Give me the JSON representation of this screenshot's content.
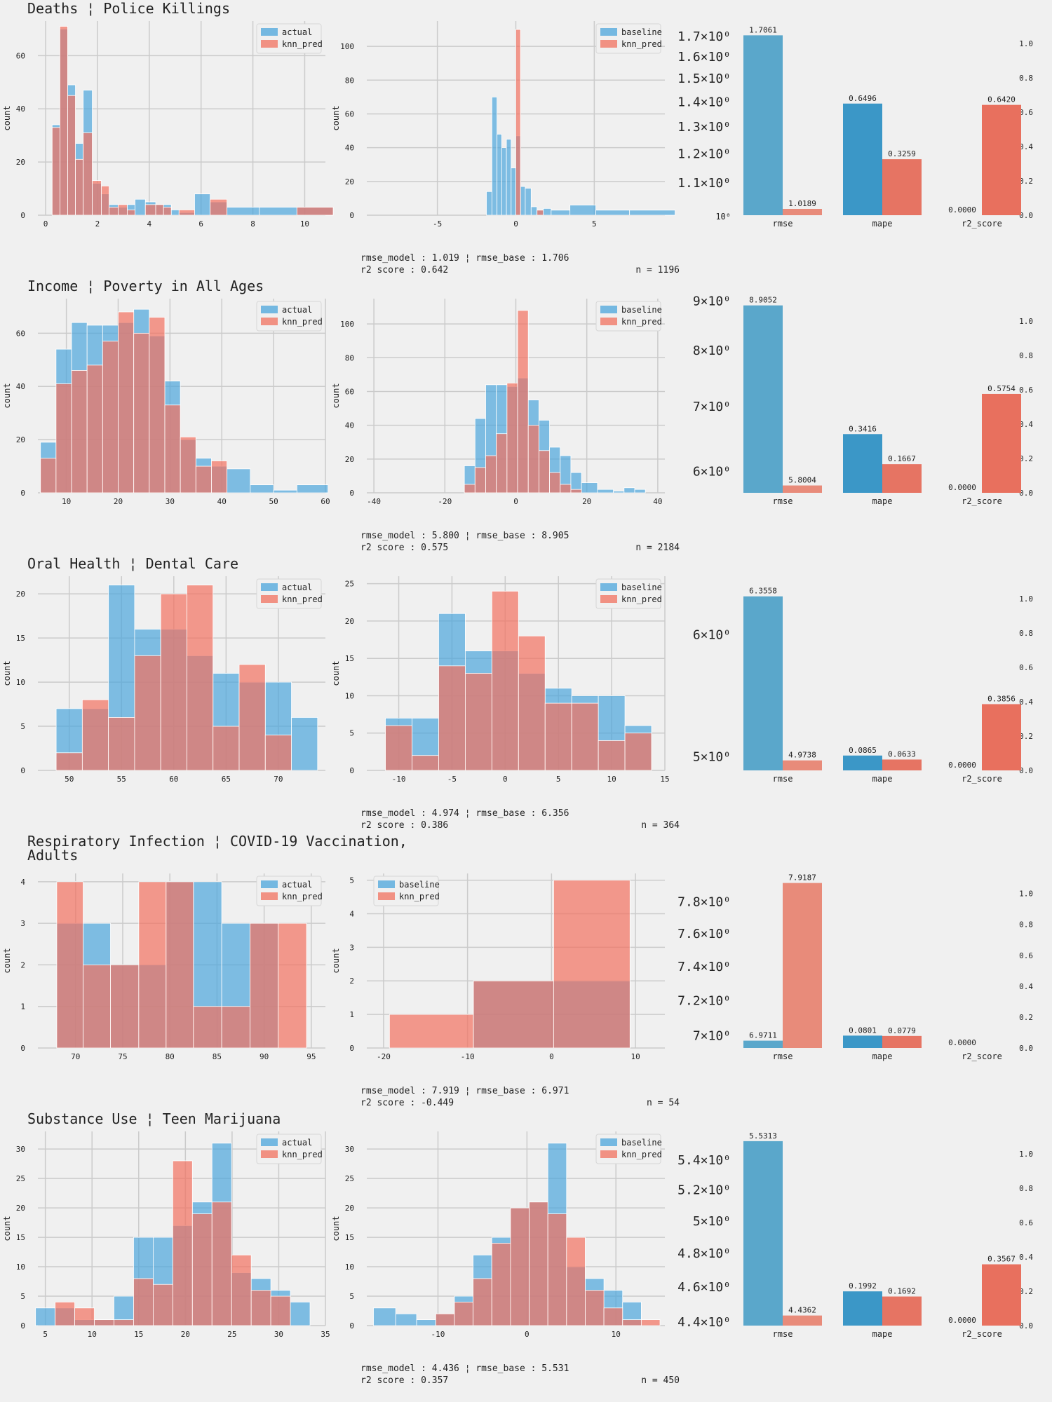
{
  "colors": {
    "blue": "#4ba5dc",
    "red": "#f2715f",
    "bg": "#f0f0f0",
    "grid": "#cbcbcb"
  },
  "labels": {
    "count": "count",
    "actual": "actual",
    "knn_pred": "knn_pred",
    "baseline": "baseline",
    "metrics": [
      "rmse",
      "mape",
      "r2_score"
    ]
  },
  "chart_data": [
    {
      "title": [
        "Deaths ¦ Police Killings"
      ],
      "hist_left": {
        "type": "bar",
        "xlim": [
          -0.3,
          10.8
        ],
        "ylim": [
          0,
          73
        ],
        "xticks": [
          0,
          2,
          4,
          6,
          8,
          10
        ],
        "yticks": [
          0,
          20,
          40,
          60
        ],
        "x": [
          0.4,
          0.7,
          1.0,
          1.3,
          1.6,
          2.0,
          2.3,
          2.6,
          3.0,
          3.3,
          3.6,
          4.1,
          4.4,
          4.7,
          5.0,
          5.3,
          6.2,
          6.5,
          7.5,
          9.0,
          10.4
        ],
        "series": [
          {
            "name": "actual",
            "values": [
              34,
              70,
              49,
              27,
              47,
              12,
              8,
              4,
              3,
              4,
              6,
              5,
              4,
              4,
              2,
              1,
              8,
              5,
              3,
              3,
              3
            ]
          },
          {
            "name": "knn_pred",
            "values": [
              33,
              71,
              45,
              21,
              31,
              13,
              11,
              3,
              4,
              2,
              0,
              4,
              4,
              3,
              0,
              2,
              0,
              6,
              0,
              0,
              3
            ]
          }
        ]
      },
      "hist_right": {
        "type": "bar",
        "xlim": [
          -9.5,
          9.5
        ],
        "ylim": [
          0,
          115
        ],
        "xticks": [
          -5,
          0,
          5
        ],
        "yticks": [
          0,
          20,
          40,
          60,
          80,
          100
        ],
        "x": [
          -1.7,
          -1.35,
          -1.05,
          -0.75,
          -0.45,
          -0.15,
          0.15,
          0.45,
          0.75,
          1.2,
          1.5,
          2.0,
          2.5,
          4.4,
          5.8,
          8.7
        ],
        "series": [
          {
            "name": "baseline",
            "values": [
              14,
              70,
              48,
              40,
              45,
              28,
              47,
              17,
              16,
              5,
              3,
              4,
              3,
              6,
              3,
              3
            ]
          },
          {
            "name": "knn_pred",
            "values": [
              0,
              0,
              0,
              0,
              0,
              0,
              110,
              0,
              0,
              0,
              3,
              0,
              0,
              0,
              0,
              0
            ]
          }
        ]
      },
      "metrics": {
        "type": "bar",
        "log": true,
        "ylim_rmse": [
          1.0,
          1.78
        ],
        "rmse_ticks": [
          {
            "v": 1.0,
            "label": "10⁰",
            "small": true
          },
          {
            "v": 1.1,
            "label": "1.1×10⁰"
          },
          {
            "v": 1.2,
            "label": "1.2×10⁰"
          },
          {
            "v": 1.3,
            "label": "1.3×10⁰"
          },
          {
            "v": 1.4,
            "label": "1.4×10⁰"
          },
          {
            "v": 1.5,
            "label": "1.5×10⁰"
          },
          {
            "v": 1.6,
            "label": "1.6×10⁰"
          },
          {
            "v": 1.7,
            "label": "1.7×10⁰"
          }
        ],
        "right_ylim": [
          0,
          1.13
        ],
        "right_ticks": [
          0,
          0.2,
          0.4,
          0.6,
          0.8,
          1.0
        ],
        "baseline": [
          1.7061,
          0.6496,
          0.0
        ],
        "model": [
          1.0189,
          0.3259,
          0.642
        ],
        "baseline_labels": [
          "1.7061",
          "0.6496",
          "0.0000"
        ],
        "model_labels": [
          "1.0189",
          "0.3259",
          "0.6420"
        ]
      },
      "footer": {
        "line1": "rmse_model : 1.019 ¦ rmse_base : 1.706",
        "line2": "r2 score : 0.642",
        "n": "n = 1196"
      }
    },
    {
      "title": [
        "Income ¦ Poverty in All Ages"
      ],
      "hist_left": {
        "type": "bar",
        "xlim": [
          4.5,
          60
        ],
        "ylim": [
          0,
          73
        ],
        "xticks": [
          10,
          20,
          30,
          40,
          50,
          60
        ],
        "yticks": [
          0,
          20,
          40,
          60
        ],
        "x": [
          6.5,
          9.5,
          12.5,
          15.5,
          18.5,
          21.5,
          24.5,
          27.5,
          30.5,
          33.5,
          36.5,
          39.5,
          42.5,
          48.5,
          51.5,
          57.5
        ],
        "series": [
          {
            "name": "actual",
            "values": [
              19,
              54,
              64,
              63,
              63,
              64,
              69,
              59,
              42,
              20,
              13,
              10,
              9,
              3,
              1,
              3
            ]
          },
          {
            "name": "knn_pred",
            "values": [
              13,
              41,
              46,
              48,
              57,
              68,
              60,
              66,
              33,
              21,
              10,
              12,
              0,
              0,
              0,
              0
            ]
          }
        ]
      },
      "hist_right": {
        "type": "bar",
        "xlim": [
          -42,
          42
        ],
        "ylim": [
          0,
          115
        ],
        "xticks": [
          -40,
          -20,
          0,
          20,
          40
        ],
        "yticks": [
          0,
          20,
          40,
          60,
          80,
          100
        ],
        "x": [
          -13.0,
          -10.0,
          -7.0,
          -4.0,
          -1.0,
          2.0,
          5.0,
          8.0,
          11.0,
          14.0,
          17.0,
          20.0,
          26.0,
          29.0,
          32.0,
          35.0
        ],
        "series": [
          {
            "name": "baseline",
            "values": [
              16,
              44,
              64,
              64,
              63,
              68,
              55,
              43,
              27,
              22,
              12,
              6,
              2,
              1,
              3,
              2
            ]
          },
          {
            "name": "knn_pred",
            "values": [
              5,
              15,
              22,
              35,
              65,
              108,
              40,
              25,
              12,
              5,
              2,
              0,
              0,
              0,
              0,
              0
            ]
          }
        ]
      },
      "metrics": {
        "type": "bar",
        "log": true,
        "ylim_rmse": [
          5.7,
          9.05
        ],
        "rmse_ticks": [
          {
            "v": 6,
            "label": "6×10⁰"
          },
          {
            "v": 7,
            "label": "7×10⁰"
          },
          {
            "v": 8,
            "label": "8×10⁰"
          },
          {
            "v": 9,
            "label": "9×10⁰"
          }
        ],
        "right_ylim": [
          0,
          1.13
        ],
        "right_ticks": [
          0,
          0.2,
          0.4,
          0.6,
          0.8,
          1.0
        ],
        "baseline": [
          8.9052,
          0.3416,
          0.0
        ],
        "model": [
          5.8004,
          0.1667,
          0.5754
        ],
        "baseline_labels": [
          "8.9052",
          "0.3416",
          "0.0000"
        ],
        "model_labels": [
          "5.8004",
          "0.1667",
          "0.5754"
        ]
      },
      "footer": {
        "line1": "rmse_model : 5.800 ¦ rmse_base : 8.905",
        "line2": "r2 score : 0.575",
        "n": "n = 2184"
      }
    },
    {
      "title": [
        "Oral Health ¦ Dental Care"
      ],
      "hist_left": {
        "type": "bar",
        "xlim": [
          47,
          74.5
        ],
        "ylim": [
          0,
          22
        ],
        "xticks": [
          50,
          55,
          60,
          65,
          70
        ],
        "yticks": [
          0,
          5,
          10,
          15,
          20
        ],
        "x": [
          50.0,
          52.5,
          55.0,
          57.5,
          60.0,
          62.5,
          65.0,
          67.5,
          70.0,
          72.5
        ],
        "series": [
          {
            "name": "actual",
            "values": [
              7,
              7,
              21,
              16,
              16,
              13,
              11,
              10,
              10,
              6
            ]
          },
          {
            "name": "knn_pred",
            "values": [
              2,
              8,
              6,
              13,
              20,
              21,
              5,
              12,
              4,
              0
            ]
          }
        ]
      },
      "hist_right": {
        "type": "bar",
        "xlim": [
          -13,
          15
        ],
        "ylim": [
          0,
          26
        ],
        "xticks": [
          -10,
          -5,
          0,
          5,
          10,
          15
        ],
        "yticks": [
          0,
          5,
          10,
          15,
          20,
          25
        ],
        "x": [
          -10.0,
          -7.5,
          -5.0,
          -2.5,
          0.0,
          2.5,
          5.0,
          7.5,
          10.0,
          12.5
        ],
        "series": [
          {
            "name": "baseline",
            "values": [
              7,
              7,
              21,
              16,
              16,
              13,
              11,
              10,
              10,
              6
            ]
          },
          {
            "name": "knn_pred",
            "values": [
              6,
              2,
              14,
              13,
              24,
              18,
              9,
              9,
              4,
              5
            ]
          }
        ]
      },
      "metrics": {
        "type": "bar",
        "log": true,
        "ylim_rmse": [
          4.9,
          6.55
        ],
        "rmse_ticks": [
          {
            "v": 5,
            "label": "5×10⁰"
          },
          {
            "v": 6,
            "label": "6×10⁰"
          }
        ],
        "right_ylim": [
          0,
          1.13
        ],
        "right_ticks": [
          0,
          0.2,
          0.4,
          0.6,
          0.8,
          1.0
        ],
        "baseline": [
          6.3558,
          0.0865,
          0.0
        ],
        "model": [
          4.9738,
          0.0633,
          0.3856
        ],
        "baseline_labels": [
          "6.3558",
          "0.0865",
          "0.0000"
        ],
        "model_labels": [
          "4.9738",
          "0.0633",
          "0.3856"
        ]
      },
      "footer": {
        "line1": "rmse_model : 4.974 ¦ rmse_base : 6.356",
        "line2": "r2 score : 0.386",
        "n": "n = 364"
      }
    },
    {
      "title": [
        "Respiratory Infection ¦ COVID-19 Vaccination,",
        "Adults"
      ],
      "hist_left": {
        "type": "bar",
        "xlim": [
          66,
          96.5
        ],
        "ylim": [
          0,
          4.2
        ],
        "xticks": [
          70,
          75,
          80,
          85,
          90,
          95
        ],
        "yticks": [
          0,
          1,
          2,
          3,
          4
        ],
        "x": [
          69.4,
          72.2,
          75.2,
          78.2,
          81.0,
          84.0,
          87.0,
          90.0,
          93.0
        ],
        "series": [
          {
            "name": "actual",
            "values": [
              3,
              3,
              2,
              2,
              4,
              4,
              3,
              3,
              0
            ]
          },
          {
            "name": "knn_pred",
            "values": [
              4,
              2,
              2,
              4,
              4,
              1,
              1,
              3,
              3
            ]
          }
        ]
      },
      "hist_right": {
        "type": "bar",
        "xlim": [
          -22,
          13.5
        ],
        "ylim": [
          0,
          5.2
        ],
        "xticks": [
          -20,
          -10,
          0,
          10
        ],
        "yticks": [
          0,
          1,
          2,
          3,
          4,
          5
        ],
        "x": [
          -14.3,
          -4.3,
          4.8
        ],
        "series": [
          {
            "name": "baseline",
            "values": [
              0,
              2,
              2
            ]
          },
          {
            "name": "knn_pred",
            "values": [
              1,
              2,
              5
            ]
          }
        ]
      },
      "metrics": {
        "type": "bar",
        "log": true,
        "ylim_rmse": [
          6.93,
          7.98
        ],
        "rmse_ticks": [
          {
            "v": 7.0,
            "label": "7×10⁰"
          },
          {
            "v": 7.2,
            "label": "7.2×10⁰"
          },
          {
            "v": 7.4,
            "label": "7.4×10⁰"
          },
          {
            "v": 7.6,
            "label": "7.6×10⁰"
          },
          {
            "v": 7.8,
            "label": "7.8×10⁰"
          }
        ],
        "right_ylim": [
          0,
          1.13
        ],
        "right_ticks": [
          0,
          0.2,
          0.4,
          0.6,
          0.8,
          1.0
        ],
        "baseline": [
          6.9711,
          0.0801,
          0.0
        ],
        "model": [
          7.9187,
          0.0779,
          0.0
        ],
        "baseline_labels": [
          "6.9711",
          "0.0801",
          "0.0000"
        ],
        "model_labels": [
          "7.9187",
          "0.0779",
          ""
        ]
      },
      "footer": {
        "line1": "rmse_model : 7.919 ¦ rmse_base : 6.971",
        "line2": "r2 score : -0.449",
        "n": "n = 54"
      }
    },
    {
      "title": [
        "Substance Use ¦ Teen Marijuana"
      ],
      "hist_left": {
        "type": "bar",
        "xlim": [
          4.2,
          35
        ],
        "ylim": [
          0,
          33
        ],
        "xticks": [
          5,
          10,
          15,
          20,
          25,
          30,
          35
        ],
        "yticks": [
          0,
          5,
          10,
          15,
          20,
          25,
          30
        ],
        "x": [
          5.0,
          7.1,
          9.2,
          11.3,
          13.4,
          15.5,
          17.6,
          19.7,
          21.8,
          23.9,
          26.0,
          28.1,
          30.2,
          32.3
        ],
        "series": [
          {
            "name": "actual",
            "values": [
              3,
              3,
              1,
              1,
              5,
              15,
              15,
              17,
              21,
              31,
              9,
              8,
              6,
              4
            ]
          },
          {
            "name": "knn_pred",
            "values": [
              0,
              4,
              3,
              1,
              1,
              8,
              7,
              28,
              19,
              21,
              12,
              6,
              5,
              0
            ]
          }
        ]
      },
      "hist_right": {
        "type": "bar",
        "xlim": [
          -18,
          15.5
        ],
        "ylim": [
          0,
          33
        ],
        "xticks": [
          -10,
          0,
          10
        ],
        "yticks": [
          0,
          5,
          10,
          15,
          20,
          25,
          30
        ],
        "x": [
          -16.0,
          -13.5,
          -11.3,
          -9.2,
          -7.1,
          -5.0,
          -2.9,
          -0.8,
          1.3,
          3.4,
          5.5,
          7.6,
          9.7,
          11.8,
          13.9
        ],
        "series": [
          {
            "name": "baseline",
            "values": [
              3,
              2,
              1,
              2,
              5,
              12,
              15,
              20,
              21,
              31,
              10,
              8,
              6,
              4,
              0
            ]
          },
          {
            "name": "knn_pred",
            "values": [
              0,
              0,
              0,
              2,
              4,
              8,
              14,
              20,
              21,
              19,
              15,
              6,
              3,
              1,
              1
            ]
          }
        ]
      },
      "metrics": {
        "type": "bar",
        "log": true,
        "ylim_rmse": [
          4.38,
          5.6
        ],
        "rmse_ticks": [
          {
            "v": 4.4,
            "label": "4.4×10⁰"
          },
          {
            "v": 4.6,
            "label": "4.6×10⁰"
          },
          {
            "v": 4.8,
            "label": "4.8×10⁰"
          },
          {
            "v": 5.0,
            "label": "5×10⁰"
          },
          {
            "v": 5.2,
            "label": "5.2×10⁰"
          },
          {
            "v": 5.4,
            "label": "5.4×10⁰"
          }
        ],
        "right_ylim": [
          0,
          1.13
        ],
        "right_ticks": [
          0,
          0.2,
          0.4,
          0.6,
          0.8,
          1.0
        ],
        "baseline": [
          5.5313,
          0.1992,
          0.0
        ],
        "model": [
          4.4362,
          0.1692,
          0.3567
        ],
        "baseline_labels": [
          "5.5313",
          "0.1992",
          "0.0000"
        ],
        "model_labels": [
          "4.4362",
          "0.1692",
          "0.3567"
        ]
      },
      "footer": {
        "line1": "rmse_model : 4.436 ¦ rmse_base : 5.531",
        "line2": "r2 score : 0.357",
        "n": "n = 450"
      }
    }
  ]
}
